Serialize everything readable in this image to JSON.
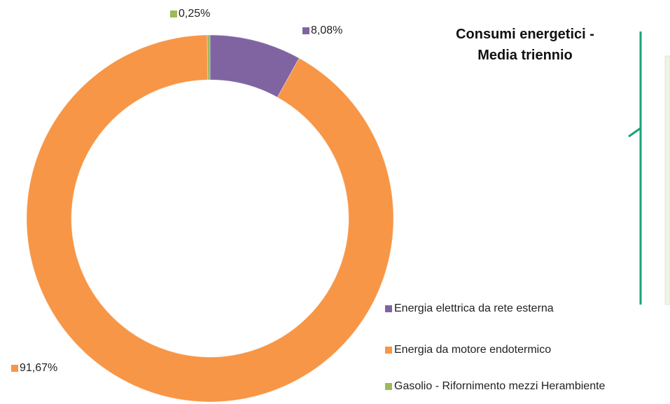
{
  "chart_data": {
    "type": "pie",
    "donut": true,
    "title": "Consumi energetici - Media triennio",
    "categories": [
      "Energia elettrica da rete esterna",
      "Energia da motore endotermico",
      "Gasolio - Rifornimento mezzi Herambiente"
    ],
    "values": [
      8.08,
      91.67,
      0.25
    ],
    "value_labels": [
      "8,08%",
      "91,67%",
      "0,25%"
    ],
    "colors": [
      "#8064a2",
      "#f79646",
      "#9bbb59"
    ],
    "legend": "right"
  }
}
